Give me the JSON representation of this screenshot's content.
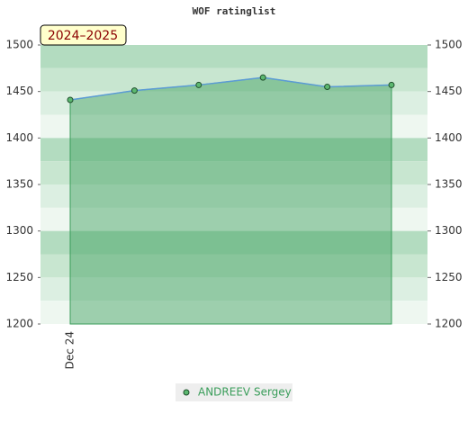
{
  "chart_data": {
    "type": "line",
    "title": "WOF ratinglist",
    "badge": "2024–2025",
    "categories": [
      "Dec 24",
      null,
      null,
      null,
      null,
      null
    ],
    "series": [
      {
        "name": "ANDREEV Sergey",
        "color": "#3a9d5a",
        "values": [
          1441,
          1451,
          1457,
          1465,
          1455,
          1457
        ]
      }
    ],
    "ylim": [
      1200,
      1500
    ],
    "yticks": [
      1200,
      1250,
      1300,
      1350,
      1400,
      1450,
      1500
    ],
    "y2lim": [
      1200,
      1500
    ],
    "y2ticks": [
      1200,
      1250,
      1300,
      1350,
      1400,
      1450,
      1500
    ],
    "legend": "bottom"
  }
}
